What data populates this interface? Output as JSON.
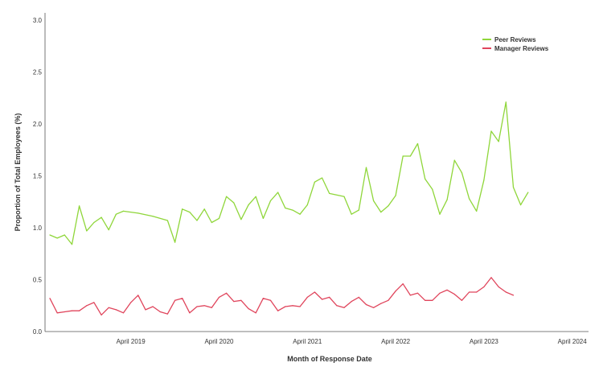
{
  "chart_data": {
    "type": "line",
    "xlabel": "Month of Response Date",
    "ylabel": "Proportion of Total Employees (%)",
    "ylim": [
      0.0,
      3.0
    ],
    "yticks": [
      "0.0",
      "0.5",
      "1.0",
      "1.5",
      "2.0",
      "2.5",
      "3.0"
    ],
    "xlim": [
      "2018-05",
      "2024-06"
    ],
    "xticks": [
      {
        "label": "April 2019",
        "date": "2019-04"
      },
      {
        "label": "April 2020",
        "date": "2020-04"
      },
      {
        "label": "April  2021",
        "date": "2021-04"
      },
      {
        "label": "April 2022",
        "date": "2022-04"
      },
      {
        "label": "April  2023",
        "date": "2023-04"
      },
      {
        "label": "April 2024",
        "date": "2024-04"
      }
    ],
    "grid": false,
    "legend_position": "top-right",
    "series": [
      {
        "name": "Peer Reviews",
        "color": "#8fd63a",
        "points": [
          [
            "2018-05",
            0.93
          ],
          [
            "2018-06",
            0.9
          ],
          [
            "2018-07",
            0.93
          ],
          [
            "2018-08",
            0.84
          ],
          [
            "2018-09",
            1.21
          ],
          [
            "2018-10",
            0.97
          ],
          [
            "2018-11",
            1.05
          ],
          [
            "2018-12",
            1.1
          ],
          [
            "2019-01",
            0.98
          ],
          [
            "2019-02",
            1.13
          ],
          [
            "2019-03",
            1.16
          ],
          [
            "2019-05",
            1.14
          ],
          [
            "2019-07",
            1.11
          ],
          [
            "2019-09",
            1.07
          ],
          [
            "2019-10",
            0.86
          ],
          [
            "2019-11",
            1.18
          ],
          [
            "2019-12",
            1.15
          ],
          [
            "2020-01",
            1.07
          ],
          [
            "2020-02",
            1.18
          ],
          [
            "2020-03",
            1.05
          ],
          [
            "2020-04",
            1.09
          ],
          [
            "2020-05",
            1.3
          ],
          [
            "2020-06",
            1.24
          ],
          [
            "2020-07",
            1.08
          ],
          [
            "2020-08",
            1.22
          ],
          [
            "2020-09",
            1.3
          ],
          [
            "2020-10",
            1.09
          ],
          [
            "2020-11",
            1.26
          ],
          [
            "2020-12",
            1.34
          ],
          [
            "2021-01",
            1.19
          ],
          [
            "2021-02",
            1.17
          ],
          [
            "2021-03",
            1.13
          ],
          [
            "2021-04",
            1.22
          ],
          [
            "2021-05",
            1.44
          ],
          [
            "2021-06",
            1.48
          ],
          [
            "2021-07",
            1.33
          ],
          [
            "2021-09",
            1.3
          ],
          [
            "2021-10",
            1.13
          ],
          [
            "2021-11",
            1.17
          ],
          [
            "2021-12",
            1.58
          ],
          [
            "2022-01",
            1.26
          ],
          [
            "2022-02",
            1.15
          ],
          [
            "2022-03",
            1.21
          ],
          [
            "2022-04",
            1.31
          ],
          [
            "2022-05",
            1.69
          ],
          [
            "2022-06",
            1.69
          ],
          [
            "2022-07",
            1.81
          ],
          [
            "2022-08",
            1.47
          ],
          [
            "2022-09",
            1.37
          ],
          [
            "2022-10",
            1.13
          ],
          [
            "2022-11",
            1.27
          ],
          [
            "2022-12",
            1.65
          ],
          [
            "2023-01",
            1.53
          ],
          [
            "2023-02",
            1.28
          ],
          [
            "2023-03",
            1.16
          ],
          [
            "2023-04",
            1.46
          ],
          [
            "2023-05",
            1.93
          ],
          [
            "2023-06",
            1.83
          ],
          [
            "2023-07",
            2.21
          ],
          [
            "2023-08",
            1.39
          ],
          [
            "2023-09",
            1.22
          ],
          [
            "2023-10",
            1.34
          ]
        ]
      },
      {
        "name": "Manager Reviews",
        "color": "#e0455c",
        "points": [
          [
            "2018-05",
            0.32
          ],
          [
            "2018-06",
            0.18
          ],
          [
            "2018-07",
            0.19
          ],
          [
            "2018-08",
            0.2
          ],
          [
            "2018-09",
            0.2
          ],
          [
            "2018-10",
            0.25
          ],
          [
            "2018-11",
            0.28
          ],
          [
            "2018-12",
            0.16
          ],
          [
            "2019-01",
            0.23
          ],
          [
            "2019-02",
            0.21
          ],
          [
            "2019-03",
            0.18
          ],
          [
            "2019-04",
            0.28
          ],
          [
            "2019-05",
            0.35
          ],
          [
            "2019-06",
            0.21
          ],
          [
            "2019-07",
            0.24
          ],
          [
            "2019-08",
            0.19
          ],
          [
            "2019-09",
            0.17
          ],
          [
            "2019-10",
            0.3
          ],
          [
            "2019-11",
            0.32
          ],
          [
            "2019-12",
            0.18
          ],
          [
            "2020-01",
            0.24
          ],
          [
            "2020-02",
            0.25
          ],
          [
            "2020-03",
            0.23
          ],
          [
            "2020-04",
            0.33
          ],
          [
            "2020-05",
            0.37
          ],
          [
            "2020-06",
            0.29
          ],
          [
            "2020-07",
            0.3
          ],
          [
            "2020-08",
            0.22
          ],
          [
            "2020-09",
            0.18
          ],
          [
            "2020-10",
            0.32
          ],
          [
            "2020-11",
            0.3
          ],
          [
            "2020-12",
            0.2
          ],
          [
            "2021-01",
            0.24
          ],
          [
            "2021-02",
            0.25
          ],
          [
            "2021-03",
            0.24
          ],
          [
            "2021-04",
            0.33
          ],
          [
            "2021-05",
            0.38
          ],
          [
            "2021-06",
            0.31
          ],
          [
            "2021-07",
            0.33
          ],
          [
            "2021-08",
            0.25
          ],
          [
            "2021-09",
            0.23
          ],
          [
            "2021-10",
            0.29
          ],
          [
            "2021-11",
            0.33
          ],
          [
            "2021-12",
            0.26
          ],
          [
            "2022-01",
            0.23
          ],
          [
            "2022-02",
            0.27
          ],
          [
            "2022-03",
            0.3
          ],
          [
            "2022-04",
            0.39
          ],
          [
            "2022-05",
            0.46
          ],
          [
            "2022-06",
            0.35
          ],
          [
            "2022-07",
            0.37
          ],
          [
            "2022-08",
            0.3
          ],
          [
            "2022-09",
            0.3
          ],
          [
            "2022-10",
            0.37
          ],
          [
            "2022-11",
            0.4
          ],
          [
            "2022-12",
            0.36
          ],
          [
            "2023-01",
            0.3
          ],
          [
            "2023-02",
            0.38
          ],
          [
            "2023-03",
            0.38
          ],
          [
            "2023-04",
            0.43
          ],
          [
            "2023-05",
            0.52
          ],
          [
            "2023-06",
            0.43
          ],
          [
            "2023-07",
            0.38
          ],
          [
            "2023-08",
            0.35
          ]
        ]
      }
    ]
  }
}
